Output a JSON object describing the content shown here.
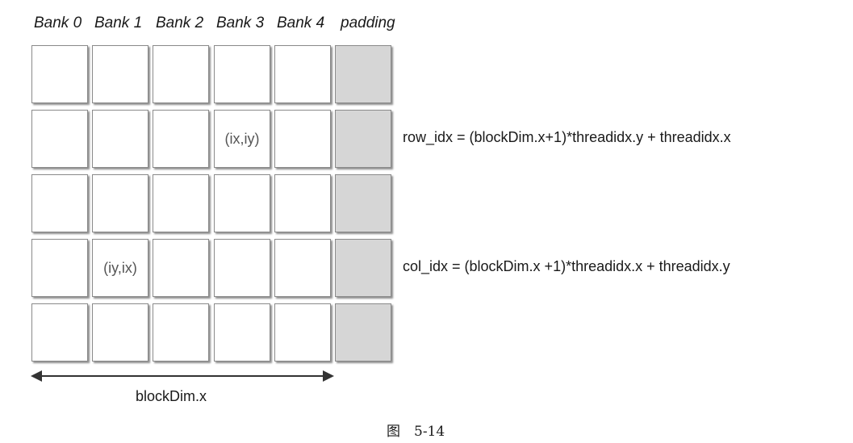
{
  "banks": [
    "Bank 0",
    "Bank 1",
    "Bank 2",
    "Bank 3",
    "Bank 4",
    "padding"
  ],
  "cells": {
    "rowCellLabel": "(ix,iy)",
    "colCellLabel": "(iy,ix)"
  },
  "formulas": {
    "row": "row_idx = (blockDim.x+1)*threadidx.y + threadidx.x",
    "col": "col_idx = (blockDim.x +1)*threadidx.x + threadidx.y"
  },
  "dimension": "blockDim.x",
  "caption": "图　5-14",
  "colors": {
    "padding_fill": "#d6d6d6",
    "cell_fill": "#ffffff",
    "cell_border": "#8a8a8a"
  }
}
